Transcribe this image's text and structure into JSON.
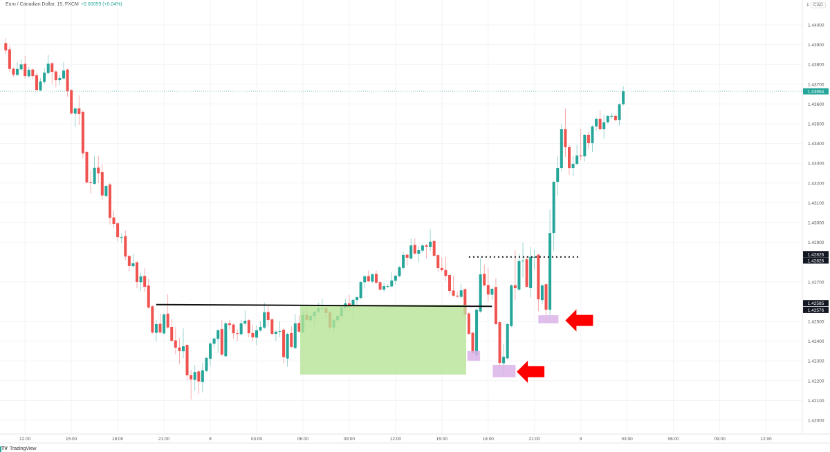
{
  "header": {
    "symbol_title": "Euro / Canadian Dollar, 15, FXCM",
    "change": "+0.00059 (+0.04%)"
  },
  "price_axis": {
    "currency": "CAD",
    "currency_prefix": "1",
    "labels": [
      "1.44000",
      "1.43900",
      "1.43800",
      "1.43700",
      "1.43600",
      "1.43500",
      "1.43400",
      "1.43300",
      "1.43200",
      "1.43100",
      "1.43000",
      "1.42900",
      "1.42700",
      "1.42500",
      "1.42400",
      "1.42300",
      "1.42200",
      "1.42100",
      "1.42000"
    ],
    "current_price_label": "1.43664",
    "marker_labels": [
      {
        "text": "1.42826",
        "price": 1.4284
      },
      {
        "text": "1.42826",
        "price": 1.42808
      },
      {
        "text": "1.42585",
        "price": 1.42592
      },
      {
        "text": "1.42576",
        "price": 1.42558
      }
    ]
  },
  "time_axis": {
    "labels": [
      "12:00",
      "15:00",
      "18:00",
      "21:00",
      "8",
      "03:00",
      "06:00",
      "09:00",
      "12:00",
      "15:00",
      "18:00",
      "21:00",
      "9",
      "03:00",
      "06:00",
      "09:00",
      "12:00"
    ]
  },
  "branding": {
    "logo_text": "TradingView"
  },
  "colors": {
    "up": "#26a69a",
    "down": "#ef5350",
    "zone": "#b5e396",
    "box": "#dcb4ea",
    "arrow": "#ff0000",
    "line": "#111111",
    "grid": "#f1f3f7"
  },
  "chart_data": {
    "type": "candlestick",
    "title": "Euro / Canadian Dollar, 15, FXCM",
    "interval_minutes": 15,
    "ylim": [
      1.4189,
      1.4412
    ],
    "grid": true,
    "current_price": 1.43664,
    "candles": [
      [
        1.43908,
        1.43932,
        1.43849,
        1.43871
      ],
      [
        1.43876,
        1.43892,
        1.43762,
        1.43777
      ],
      [
        1.43778,
        1.43784,
        1.43738,
        1.43748
      ],
      [
        1.43747,
        1.43812,
        1.43741,
        1.43777
      ],
      [
        1.43775,
        1.43825,
        1.43765,
        1.438
      ],
      [
        1.43803,
        1.43843,
        1.43728,
        1.43741
      ],
      [
        1.4374,
        1.43787,
        1.43732,
        1.43773
      ],
      [
        1.43774,
        1.43781,
        1.43728,
        1.43741
      ],
      [
        1.43745,
        1.43757,
        1.43665,
        1.43671
      ],
      [
        1.43669,
        1.4373,
        1.43663,
        1.43714
      ],
      [
        1.43711,
        1.43782,
        1.43702,
        1.43758
      ],
      [
        1.43756,
        1.4385,
        1.4375,
        1.43804
      ],
      [
        1.43806,
        1.43812,
        1.43702,
        1.43762
      ],
      [
        1.43764,
        1.4377,
        1.43684,
        1.4372
      ],
      [
        1.4372,
        1.43744,
        1.43694,
        1.43731
      ],
      [
        1.43729,
        1.43812,
        1.43723,
        1.43769
      ],
      [
        1.43774,
        1.4378,
        1.43637,
        1.43664
      ],
      [
        1.4367,
        1.43676,
        1.43546,
        1.43552
      ],
      [
        1.43551,
        1.43583,
        1.43482,
        1.43577
      ],
      [
        1.43578,
        1.43643,
        1.43493,
        1.43549
      ],
      [
        1.4356,
        1.43566,
        1.43324,
        1.4335
      ],
      [
        1.43357,
        1.43363,
        1.43197,
        1.43203
      ],
      [
        1.43204,
        1.43262,
        1.43145,
        1.432
      ],
      [
        1.43196,
        1.43338,
        1.4319,
        1.43277
      ],
      [
        1.43278,
        1.43339,
        1.43199,
        1.43249
      ],
      [
        1.43255,
        1.43295,
        1.43115,
        1.43137
      ],
      [
        1.43134,
        1.43192,
        1.43128,
        1.43185
      ],
      [
        1.43193,
        1.43199,
        1.4299,
        1.43024
      ],
      [
        1.43026,
        1.43062,
        1.42972,
        1.42993
      ],
      [
        1.42996,
        1.43002,
        1.42905,
        1.42926
      ],
      [
        1.42926,
        1.42945,
        1.42895,
        1.42926
      ],
      [
        1.42931,
        1.4296,
        1.4281,
        1.42828
      ],
      [
        1.42831,
        1.42837,
        1.42753,
        1.4278
      ],
      [
        1.42779,
        1.42842,
        1.42773,
        1.42794
      ],
      [
        1.42799,
        1.42805,
        1.42667,
        1.42699
      ],
      [
        1.42698,
        1.42746,
        1.42656,
        1.42728
      ],
      [
        1.4273,
        1.42768,
        1.42648,
        1.42675
      ],
      [
        1.42681,
        1.42714,
        1.42564,
        1.4257
      ],
      [
        1.42576,
        1.42582,
        1.42438,
        1.42444
      ],
      [
        1.42442,
        1.42508,
        1.42398,
        1.42486
      ],
      [
        1.42488,
        1.4254,
        1.42438,
        1.42444
      ],
      [
        1.42439,
        1.42541,
        1.42433,
        1.42535
      ],
      [
        1.42539,
        1.42638,
        1.42463,
        1.42469
      ],
      [
        1.42472,
        1.42512,
        1.42396,
        1.42402
      ],
      [
        1.42404,
        1.42464,
        1.42334,
        1.42367
      ],
      [
        1.42368,
        1.42415,
        1.42285,
        1.4235
      ],
      [
        1.42349,
        1.42464,
        1.42314,
        1.42374
      ],
      [
        1.42381,
        1.42387,
        1.42201,
        1.42227
      ],
      [
        1.42228,
        1.42252,
        1.42105,
        1.42206
      ],
      [
        1.42204,
        1.4228,
        1.4215,
        1.42244
      ],
      [
        1.42247,
        1.42253,
        1.42133,
        1.42196
      ],
      [
        1.42193,
        1.4229,
        1.4214,
        1.42252
      ],
      [
        1.42249,
        1.42321,
        1.42243,
        1.42315
      ],
      [
        1.42311,
        1.42394,
        1.42273,
        1.42388
      ],
      [
        1.42387,
        1.42419,
        1.42362,
        1.42413
      ],
      [
        1.42411,
        1.42461,
        1.4234,
        1.42455
      ],
      [
        1.42461,
        1.42506,
        1.42326,
        1.42332
      ],
      [
        1.42324,
        1.42496,
        1.42318,
        1.4249
      ],
      [
        1.4249,
        1.42508,
        1.42458,
        1.42482
      ],
      [
        1.42484,
        1.4249,
        1.4241,
        1.4244
      ],
      [
        1.4244,
        1.4246,
        1.424,
        1.42437
      ],
      [
        1.42435,
        1.42508,
        1.42428,
        1.4249
      ],
      [
        1.42489,
        1.42557,
        1.42477,
        1.42503
      ],
      [
        1.42506,
        1.42512,
        1.4242,
        1.4244
      ],
      [
        1.42441,
        1.42481,
        1.42401,
        1.42419
      ],
      [
        1.42418,
        1.4248,
        1.4238,
        1.42455
      ],
      [
        1.42454,
        1.42499,
        1.42448,
        1.42472
      ],
      [
        1.42468,
        1.42595,
        1.42462,
        1.42546
      ],
      [
        1.42548,
        1.42577,
        1.42477,
        1.42507
      ],
      [
        1.4251,
        1.42516,
        1.42431,
        1.42437
      ],
      [
        1.42437,
        1.42454,
        1.424,
        1.42448
      ],
      [
        1.42448,
        1.425,
        1.4242,
        1.42451
      ],
      [
        1.42458,
        1.42464,
        1.42287,
        1.42319
      ],
      [
        1.42312,
        1.42443,
        1.4227,
        1.42437
      ],
      [
        1.42441,
        1.42474,
        1.42365,
        1.42371
      ],
      [
        1.42365,
        1.42538,
        1.42359,
        1.4249
      ],
      [
        1.42492,
        1.4253,
        1.42442,
        1.42448
      ],
      [
        1.42444,
        1.42556,
        1.42438,
        1.42532
      ],
      [
        1.42533,
        1.42567,
        1.42501,
        1.42507
      ],
      [
        1.42506,
        1.42536,
        1.42496,
        1.42528
      ],
      [
        1.42527,
        1.42555,
        1.42475,
        1.42549
      ],
      [
        1.42548,
        1.42594,
        1.42542,
        1.42567
      ],
      [
        1.42567,
        1.42614,
        1.42554,
        1.42567
      ],
      [
        1.42568,
        1.42574,
        1.42515,
        1.42542
      ],
      [
        1.42546,
        1.42552,
        1.42459,
        1.42469
      ],
      [
        1.42467,
        1.42513,
        1.42447,
        1.42507
      ],
      [
        1.42506,
        1.42534,
        1.425,
        1.42528
      ],
      [
        1.42526,
        1.42576,
        1.4252,
        1.4257
      ],
      [
        1.42569,
        1.42613,
        1.42553,
        1.42591
      ],
      [
        1.42591,
        1.42633,
        1.42553,
        1.4258
      ],
      [
        1.42579,
        1.42615,
        1.42512,
        1.42609
      ],
      [
        1.42608,
        1.42628,
        1.42571,
        1.42622
      ],
      [
        1.42618,
        1.42705,
        1.42612,
        1.42699
      ],
      [
        1.42698,
        1.42734,
        1.42666,
        1.42728
      ],
      [
        1.42729,
        1.42757,
        1.42697,
        1.42703
      ],
      [
        1.42701,
        1.42744,
        1.42695,
        1.42738
      ],
      [
        1.4274,
        1.42757,
        1.4269,
        1.42696
      ],
      [
        1.42698,
        1.42704,
        1.42655,
        1.42661
      ],
      [
        1.4266,
        1.42698,
        1.42648,
        1.42678
      ],
      [
        1.42678,
        1.42688,
        1.42668,
        1.42678
      ],
      [
        1.42677,
        1.42747,
        1.42671,
        1.42707
      ],
      [
        1.42706,
        1.42737,
        1.42686,
        1.42731
      ],
      [
        1.42729,
        1.4278,
        1.42723,
        1.42774
      ],
      [
        1.4277,
        1.4285,
        1.42764,
        1.42836
      ],
      [
        1.42837,
        1.42843,
        1.42781,
        1.42822
      ],
      [
        1.42818,
        1.42917,
        1.42812,
        1.42884
      ],
      [
        1.42887,
        1.4292,
        1.42837,
        1.42843
      ],
      [
        1.42842,
        1.42879,
        1.42799,
        1.4286
      ],
      [
        1.42858,
        1.4289,
        1.42847,
        1.42884
      ],
      [
        1.42885,
        1.42891,
        1.42818,
        1.42878
      ],
      [
        1.42877,
        1.42965,
        1.42857,
        1.42903
      ],
      [
        1.42906,
        1.42912,
        1.42826,
        1.42832
      ],
      [
        1.42835,
        1.42841,
        1.42753,
        1.42769
      ],
      [
        1.4277,
        1.42824,
        1.42753,
        1.42759
      ],
      [
        1.4276,
        1.42825,
        1.42705,
        1.4273
      ],
      [
        1.42734,
        1.4274,
        1.42639,
        1.42654
      ],
      [
        1.42656,
        1.42731,
        1.42624,
        1.4263
      ],
      [
        1.4263,
        1.42651,
        1.4262,
        1.42626
      ],
      [
        1.42624,
        1.42689,
        1.42618,
        1.42657
      ],
      [
        1.42663,
        1.42669,
        1.42505,
        1.42535
      ],
      [
        1.4254,
        1.42546,
        1.4243,
        1.42437
      ],
      [
        1.42442,
        1.42448,
        1.42325,
        1.42339
      ],
      [
        1.42328,
        1.42565,
        1.42304,
        1.42559
      ],
      [
        1.4255,
        1.42819,
        1.42544,
        1.42738
      ],
      [
        1.42741,
        1.42788,
        1.42676,
        1.42682
      ],
      [
        1.42684,
        1.4277,
        1.426,
        1.42636
      ],
      [
        1.42635,
        1.42671,
        1.42609,
        1.42665
      ],
      [
        1.42674,
        1.42718,
        1.4248,
        1.42486
      ],
      [
        1.42496,
        1.42502,
        1.42253,
        1.4229
      ],
      [
        1.42288,
        1.42386,
        1.42226,
        1.42321
      ],
      [
        1.42313,
        1.42492,
        1.42307,
        1.42486
      ],
      [
        1.42476,
        1.42688,
        1.4247,
        1.42682
      ],
      [
        1.42683,
        1.42859,
        1.42609,
        1.42668
      ],
      [
        1.42661,
        1.42842,
        1.42655,
        1.42805
      ],
      [
        1.42804,
        1.42896,
        1.42721,
        1.42807
      ],
      [
        1.42814,
        1.42828,
        1.42669,
        1.42675
      ],
      [
        1.42668,
        1.42877,
        1.42621,
        1.42826
      ],
      [
        1.42826,
        1.42861,
        1.42761,
        1.42826
      ],
      [
        1.42837,
        1.42843,
        1.42552,
        1.42612
      ],
      [
        1.42608,
        1.42688,
        1.42588,
        1.42682
      ],
      [
        1.42688,
        1.42694,
        1.42489,
        1.42559
      ],
      [
        1.42559,
        1.43066,
        1.4253,
        1.42947
      ],
      [
        1.42947,
        1.43212,
        1.42857,
        1.43206
      ],
      [
        1.43206,
        1.43337,
        1.43137,
        1.43276
      ],
      [
        1.43276,
        1.43498,
        1.4326,
        1.43472
      ],
      [
        1.43472,
        1.43577,
        1.43332,
        1.43381
      ],
      [
        1.43381,
        1.43392,
        1.43241,
        1.43276
      ],
      [
        1.43276,
        1.43336,
        1.43236,
        1.43297
      ],
      [
        1.43297,
        1.43394,
        1.43289,
        1.43339
      ],
      [
        1.43339,
        1.43474,
        1.43314,
        1.43335
      ],
      [
        1.43335,
        1.4345,
        1.43309,
        1.43444
      ],
      [
        1.43444,
        1.43461,
        1.43371,
        1.43402
      ],
      [
        1.43402,
        1.43492,
        1.43356,
        1.43486
      ],
      [
        1.43486,
        1.43531,
        1.43465,
        1.43525
      ],
      [
        1.43525,
        1.43567,
        1.43466,
        1.43472
      ],
      [
        1.43472,
        1.43545,
        1.43425,
        1.43507
      ],
      [
        1.43507,
        1.43545,
        1.435,
        1.43539
      ],
      [
        1.43539,
        1.43554,
        1.43524,
        1.43539
      ],
      [
        1.43539,
        1.43546,
        1.43512,
        1.43518
      ],
      [
        1.43518,
        1.43604,
        1.43491,
        1.43598
      ],
      [
        1.43598,
        1.4369,
        1.43592,
        1.43664
      ]
    ],
    "annotations": {
      "support_line": {
        "bar_start": 39,
        "bar_end": 126,
        "price_start": 1.42585,
        "price_end": 1.42576
      },
      "zone": {
        "bar_start": 76.3,
        "bar_end": 119.3,
        "price_top": 1.42584,
        "price_bottom": 1.42231
      },
      "dotted_line": {
        "bar_start": 120,
        "bar_end": 149,
        "price": 1.42826
      },
      "boxes": [
        {
          "bar_start": 119.6,
          "bar_end": 122.9,
          "price_top": 1.4235,
          "price_bottom": 1.42301
        },
        {
          "bar_start": 126.2,
          "bar_end": 132.1,
          "price_top": 1.4228,
          "price_bottom": 1.42217
        },
        {
          "bar_start": 138,
          "bar_end": 143.2,
          "price_top": 1.42531,
          "price_bottom": 1.4249
        }
      ],
      "arrows": [
        {
          "bar": 132.4,
          "price": 1.42245,
          "direction": "left"
        },
        {
          "bar": 145,
          "price": 1.42505,
          "direction": "left"
        }
      ]
    }
  }
}
